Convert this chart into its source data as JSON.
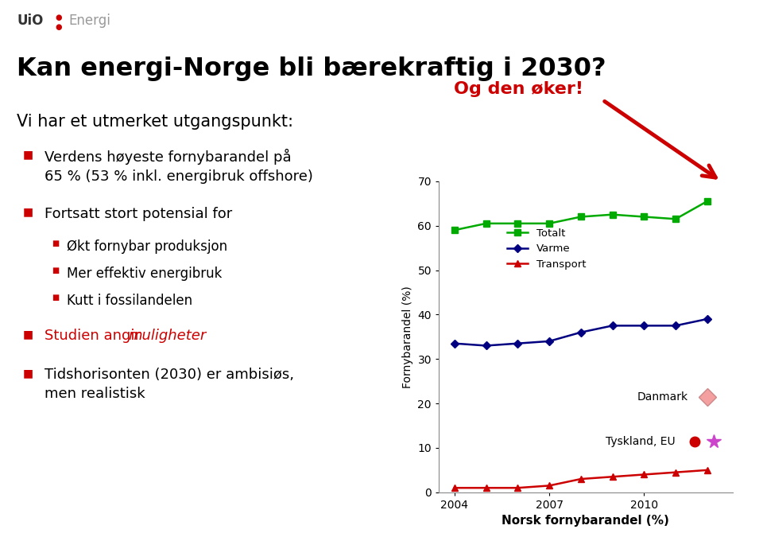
{
  "title": "Kan energi-Norge bli bærekraftig i 2030?",
  "subtitle": "Vi har et utmerket utgangspunkt:",
  "bullet1": "Verdens høyeste fornybarandel på\n65 % (53 % inkl. energibruk offshore)",
  "bullet2": "Fortsatt stort potensial for",
  "sub_bullet1": "Økt fornybar produksjon",
  "sub_bullet2": "Mer effektiv energibruk",
  "sub_bullet3": "Kutt i fossilandelen",
  "bullet3_part1": "Studien angir ",
  "bullet3_part2": "muligheter",
  "bullet4": "Tidshorisonten (2030) er ambisiøs,\nmen realistisk",
  "og_den_oker": "Og den øker!",
  "chart_ylabel": "Fornybarandel (%)",
  "chart_xlabel": "Norsk fornybarandel (%)",
  "years": [
    2004,
    2005,
    2006,
    2007,
    2008,
    2009,
    2010,
    2011,
    2012
  ],
  "totalt": [
    59,
    60.5,
    60.5,
    60.5,
    62,
    62.5,
    62,
    61.5,
    65.5
  ],
  "varme": [
    33.5,
    33.0,
    33.5,
    34.0,
    36.0,
    37.5,
    37.5,
    37.5,
    39.0
  ],
  "transport": [
    1.0,
    1.0,
    1.0,
    1.5,
    3.0,
    3.5,
    4.0,
    4.5,
    5.0
  ],
  "totalt_color": "#00aa00",
  "varme_color": "#000080",
  "transport_color": "#cc0000",
  "legend_totalt": "Totalt",
  "legend_varme": "Varme",
  "legend_transport": "Transport",
  "legend_danmark": "Danmark",
  "legend_tyskland_eu": "Tyskland, EU",
  "ylim": [
    0,
    70
  ],
  "yticks": [
    0,
    10,
    20,
    30,
    40,
    50,
    60,
    70
  ],
  "background_color": "#ffffff",
  "red_color": "#cc0000",
  "uio_color": "#333333",
  "energi_color": "#999999"
}
